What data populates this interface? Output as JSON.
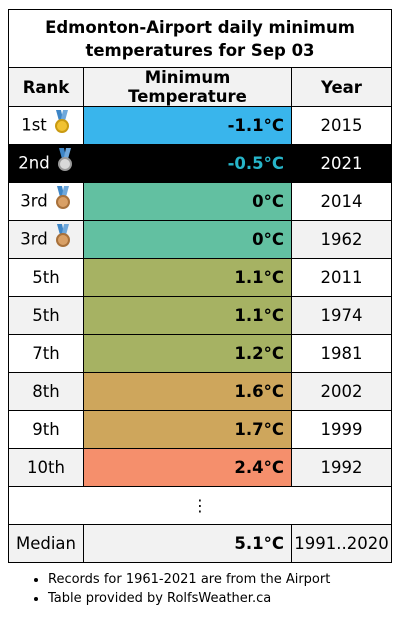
{
  "title": "Edmonton-Airport daily minimum temperatures for Sep 03",
  "columns": {
    "rank": "Rank",
    "temp": "Minimum Temperature",
    "year": "Year"
  },
  "rows": [
    {
      "rank": "1st",
      "temp": "-1.1°C",
      "year": "2015",
      "medal": "gold",
      "color": "#39b5ec"
    },
    {
      "rank": "2nd",
      "temp": "-0.5°C",
      "year": "2021",
      "medal": "silver",
      "color": "#000000"
    },
    {
      "rank": "3rd",
      "temp": "0°C",
      "year": "2014",
      "medal": "bronze",
      "color": "#62c0a1"
    },
    {
      "rank": "3rd",
      "temp": "0°C",
      "year": "1962",
      "medal": "bronze",
      "color": "#62c0a1"
    },
    {
      "rank": "5th",
      "temp": "1.1°C",
      "year": "2011",
      "medal": "",
      "color": "#a6b263"
    },
    {
      "rank": "5th",
      "temp": "1.1°C",
      "year": "1974",
      "medal": "",
      "color": "#a6b263"
    },
    {
      "rank": "7th",
      "temp": "1.2°C",
      "year": "1981",
      "medal": "",
      "color": "#a6b263"
    },
    {
      "rank": "8th",
      "temp": "1.6°C",
      "year": "2002",
      "medal": "",
      "color": "#cea65c"
    },
    {
      "rank": "9th",
      "temp": "1.7°C",
      "year": "1999",
      "medal": "",
      "color": "#cea65c"
    },
    {
      "rank": "10th",
      "temp": "2.4°C",
      "year": "1992",
      "medal": "",
      "color": "#f58f6c"
    }
  ],
  "ellipsis": "⋮",
  "median": {
    "label": "Median",
    "temp": "5.1°C",
    "years": "1991..2020"
  },
  "notes": [
    "Records for 1961-2021 are from the Airport",
    "Table provided by RolfsWeather.ca"
  ]
}
